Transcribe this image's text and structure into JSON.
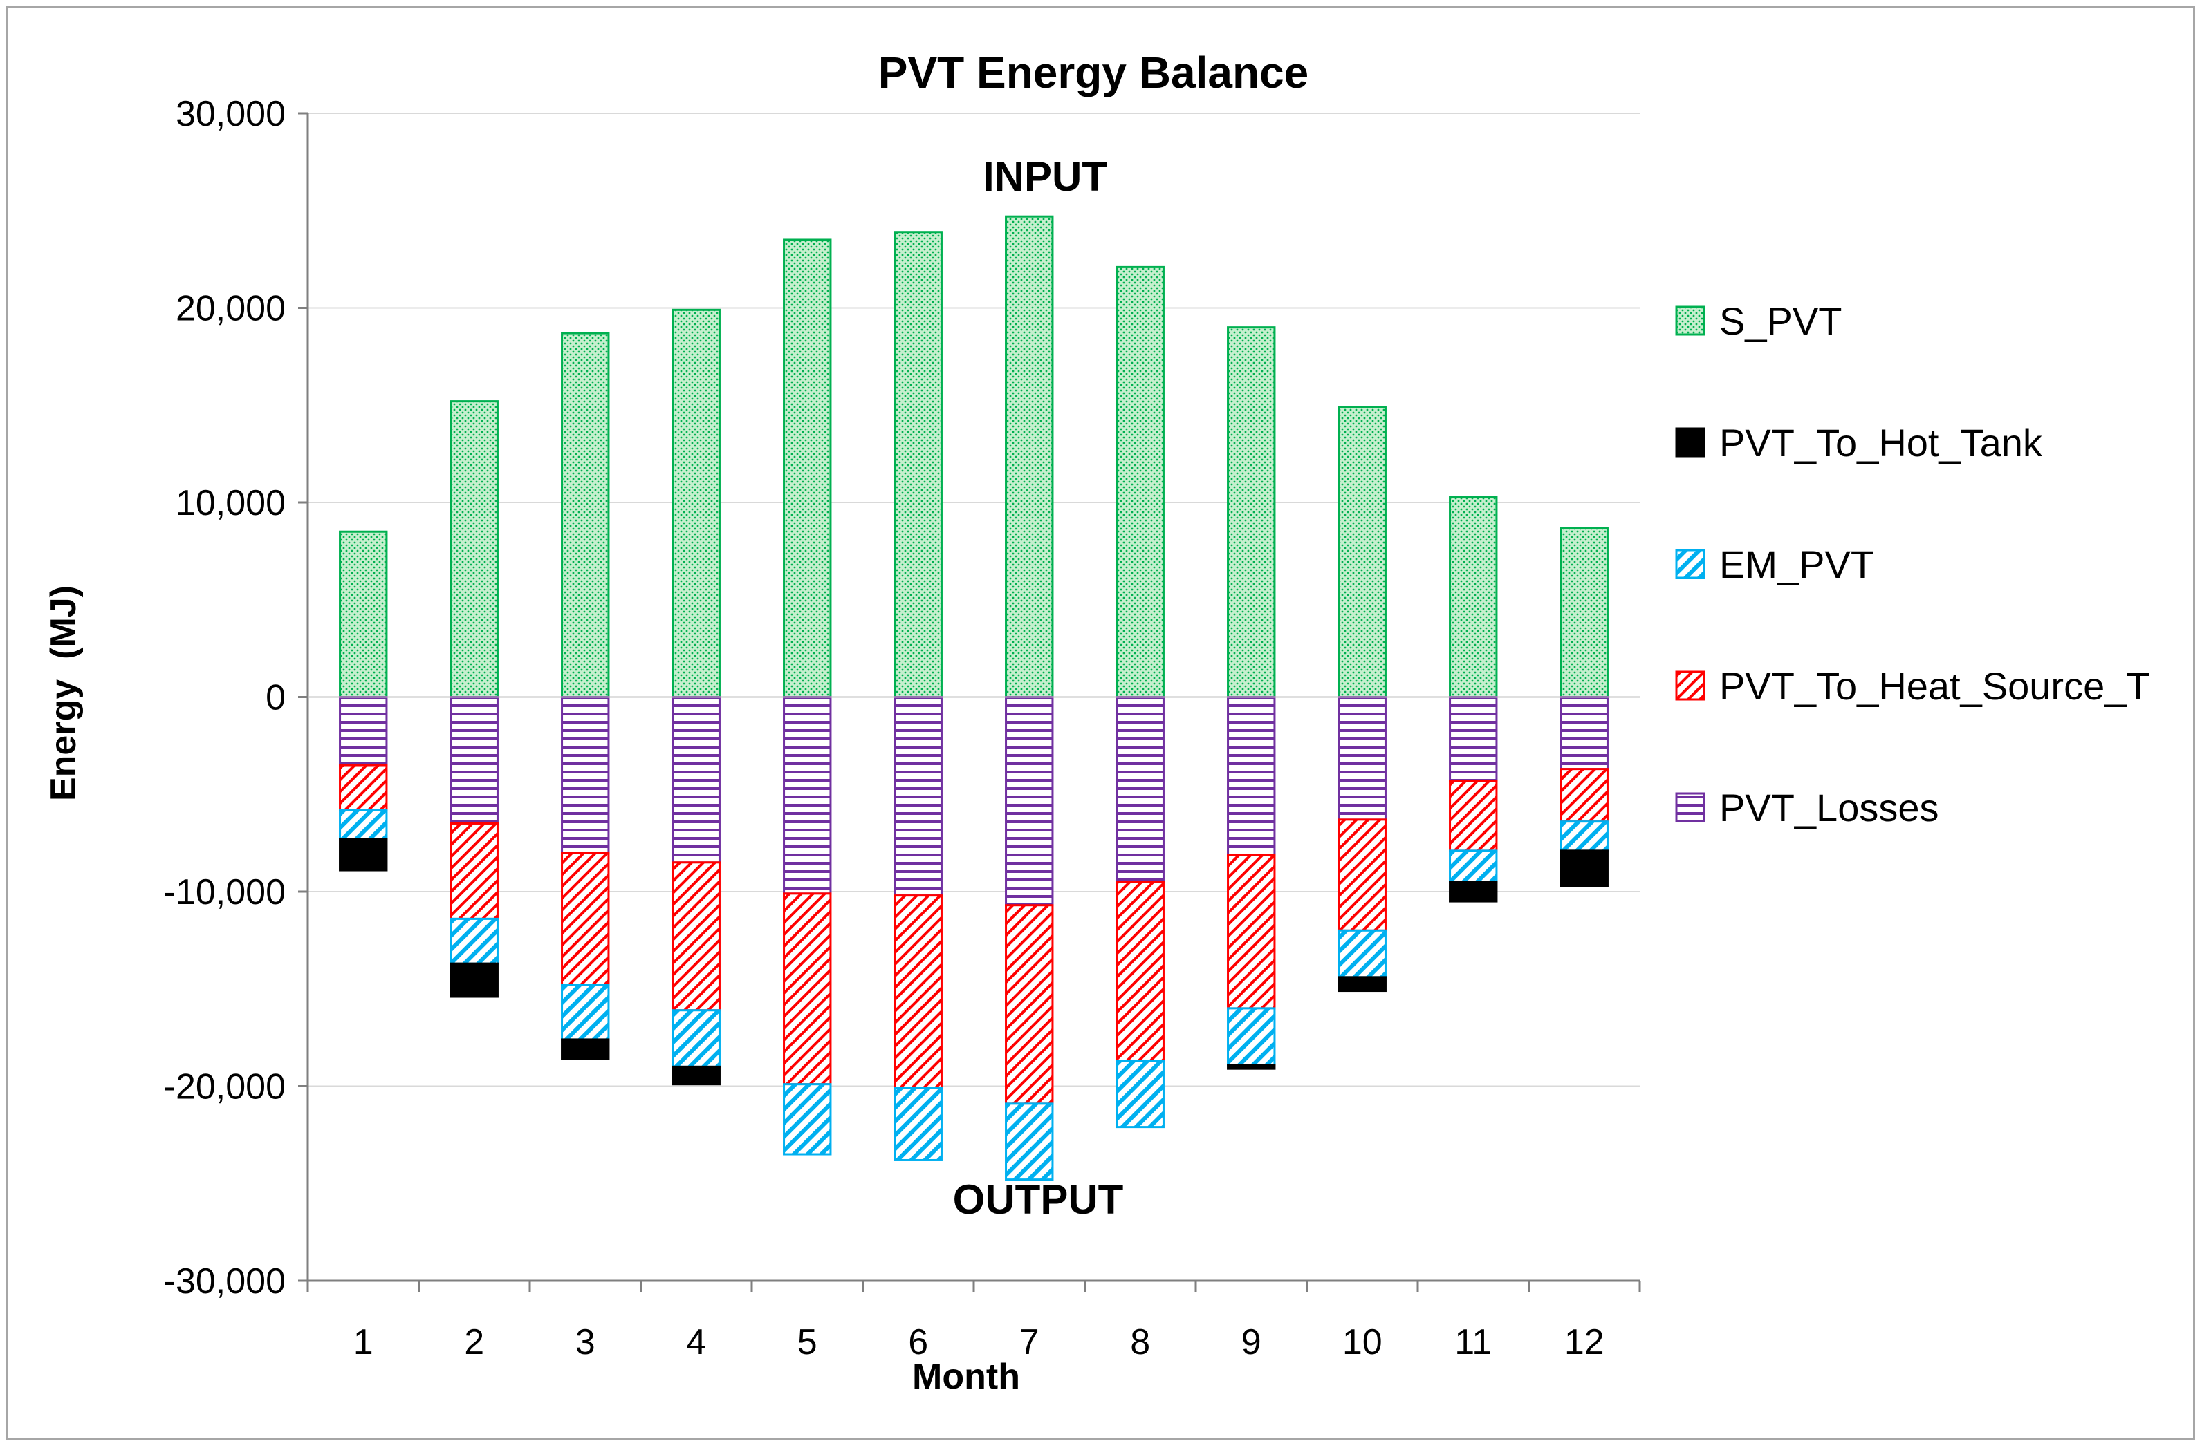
{
  "chart_data": {
    "type": "bar",
    "stacked": true,
    "title": "PVT Energy Balance",
    "xlabel": "Month",
    "ylabel": "Energy  (MJ)",
    "ylim": [
      -30000,
      30000
    ],
    "yticks": [
      30000,
      20000,
      10000,
      0,
      -10000,
      -20000,
      -30000
    ],
    "ytick_labels": [
      "30,000",
      "20,000",
      "10,000",
      "0",
      "-10,000",
      "-20,000",
      "-30,000"
    ],
    "grid": "horizontal",
    "legend_position": "right",
    "annotations": {
      "top": "INPUT",
      "bottom": "OUTPUT"
    },
    "categories": [
      "1",
      "2",
      "3",
      "4",
      "5",
      "6",
      "7",
      "8",
      "9",
      "10",
      "11",
      "12"
    ],
    "series": [
      {
        "name": "S_PVT",
        "color": "#00b050",
        "pattern": "dots",
        "values": [
          8500,
          15200,
          18700,
          19900,
          23500,
          23900,
          24700,
          22100,
          19000,
          14900,
          10300,
          8700
        ]
      },
      {
        "name": "PVT_To_Hot_Tank",
        "color": "#000000",
        "pattern": "solid",
        "values": [
          -1600,
          -1700,
          -1000,
          -900,
          0,
          0,
          0,
          0,
          -200,
          -700,
          -1000,
          -1800
        ]
      },
      {
        "name": "EM_PVT",
        "color": "#00b0f0",
        "pattern": "diagonal",
        "values": [
          -1500,
          -2300,
          -2800,
          -2900,
          -3600,
          -3700,
          -3900,
          -3400,
          -2900,
          -2400,
          -1600,
          -1500
        ]
      },
      {
        "name": "PVT_To_Heat_Source_T",
        "color": "#ff0000",
        "pattern": "diagonal",
        "values": [
          -2300,
          -4900,
          -6800,
          -7600,
          -9800,
          -9900,
          -10200,
          -9200,
          -7900,
          -5700,
          -3600,
          -2700
        ]
      },
      {
        "name": "PVT_Losses",
        "color": "#7030a0",
        "pattern": "horizontal",
        "values": [
          -3500,
          -6500,
          -8000,
          -8500,
          -10100,
          -10200,
          -10700,
          -9500,
          -8100,
          -6300,
          -4300,
          -3700
        ]
      }
    ]
  }
}
